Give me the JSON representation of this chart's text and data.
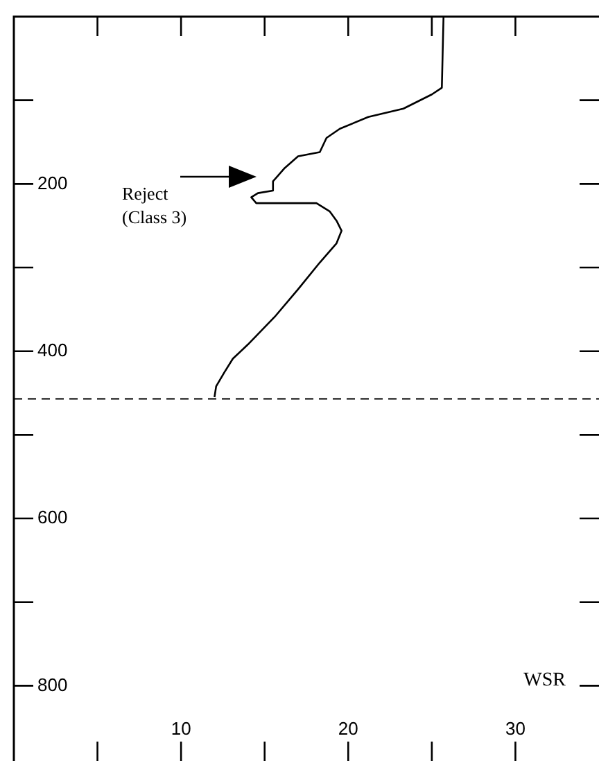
{
  "chart_data": {
    "type": "line",
    "xlabel": "WSR",
    "color": "#000000",
    "marker": "none",
    "legend": false,
    "x": [
      25.7,
      25.6,
      25.0,
      23.3,
      21.2,
      19.5,
      18.7,
      18.3,
      17.0,
      16.2,
      15.5,
      15.5,
      14.6,
      14.2,
      14.5,
      18.1,
      18.9,
      19.3,
      19.6,
      19.3,
      18.3,
      17.0,
      15.6,
      14.0,
      13.1,
      12.6,
      12.1,
      12.0
    ],
    "values": [
      0,
      85,
      93,
      110,
      120,
      134,
      145,
      162,
      167,
      181,
      197,
      208,
      211,
      216,
      223,
      223,
      233,
      244,
      256,
      271,
      294,
      326,
      359,
      392,
      409,
      425,
      442,
      455
    ],
    "xlim": [
      0,
      35
    ],
    "ylim": [
      890,
      0
    ],
    "xticks": [
      {
        "value": 5,
        "label": null
      },
      10,
      {
        "value": 15,
        "label": null
      },
      20,
      {
        "value": 25,
        "label": null
      },
      30
    ],
    "yticks": [
      {
        "value": 100,
        "label": null
      },
      200,
      {
        "value": 300,
        "label": null
      },
      400,
      {
        "value": 500,
        "label": null
      },
      600,
      {
        "value": 700,
        "label": null
      },
      800
    ],
    "ref_lines": [
      {
        "axis": "y",
        "value": 457,
        "color": "#000000",
        "line_style": "dashed"
      }
    ],
    "annotations": [
      "Reject\n(Class 3)"
    ]
  }
}
